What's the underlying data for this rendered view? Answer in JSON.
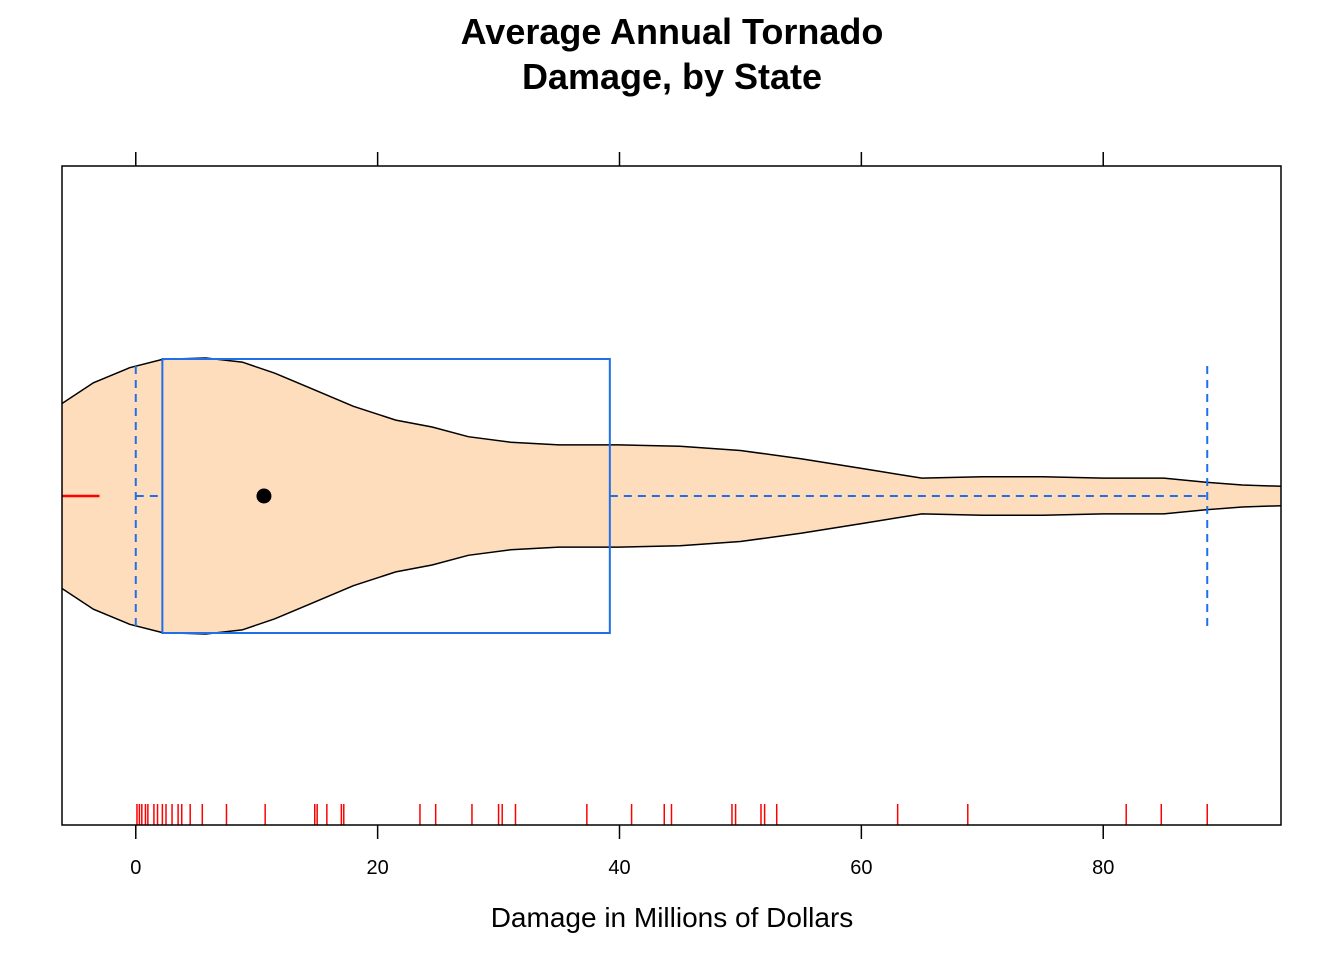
{
  "chart_data": {
    "type": "violin-box",
    "title_lines": [
      "Average Annual Tornado",
      "Damage, by State"
    ],
    "xlabel": "Damage in Millions of Dollars",
    "ylabel": "",
    "xlim": [
      -6.1,
      94.7
    ],
    "x_ticks": [
      0,
      20,
      40,
      60,
      80
    ],
    "box": {
      "whisker_low": 0,
      "q1": 2.2,
      "median": 10.6,
      "q3": 39.2,
      "whisker_high": 88.6,
      "outliers_low_marker": -3
    },
    "density": [
      {
        "x": -6.1,
        "h": 0.67
      },
      {
        "x": -3.5,
        "h": 0.82
      },
      {
        "x": -0.5,
        "h": 0.93
      },
      {
        "x": 2.2,
        "h": 0.99
      },
      {
        "x": 5.8,
        "h": 1.0
      },
      {
        "x": 8.8,
        "h": 0.97
      },
      {
        "x": 11.5,
        "h": 0.89
      },
      {
        "x": 14.5,
        "h": 0.78
      },
      {
        "x": 18,
        "h": 0.65
      },
      {
        "x": 21.5,
        "h": 0.55
      },
      {
        "x": 24.5,
        "h": 0.5
      },
      {
        "x": 27.5,
        "h": 0.43
      },
      {
        "x": 31,
        "h": 0.39
      },
      {
        "x": 35,
        "h": 0.37
      },
      {
        "x": 40,
        "h": 0.37
      },
      {
        "x": 45,
        "h": 0.36
      },
      {
        "x": 50,
        "h": 0.33
      },
      {
        "x": 55,
        "h": 0.27
      },
      {
        "x": 60,
        "h": 0.2
      },
      {
        "x": 65,
        "h": 0.13
      },
      {
        "x": 70,
        "h": 0.14
      },
      {
        "x": 75,
        "h": 0.14
      },
      {
        "x": 80,
        "h": 0.13
      },
      {
        "x": 85,
        "h": 0.13
      },
      {
        "x": 88.5,
        "h": 0.1
      },
      {
        "x": 91.5,
        "h": 0.08
      },
      {
        "x": 94.7,
        "h": 0.07
      }
    ],
    "rug": [
      0.1,
      0.3,
      0.5,
      0.8,
      1.0,
      1.5,
      1.8,
      2.2,
      2.5,
      3.0,
      3.5,
      3.8,
      4.5,
      5.5,
      7.5,
      10.7,
      14.8,
      15.0,
      15.8,
      17.0,
      17.2,
      23.5,
      24.8,
      27.8,
      30.0,
      30.3,
      31.4,
      37.3,
      41.0,
      43.7,
      44.3,
      49.3,
      49.6,
      51.7,
      52.0,
      53.0,
      63.0,
      68.8,
      81.9,
      84.8,
      88.6
    ],
    "colors": {
      "violin_fill": "#FDDDBB",
      "violin_stroke": "#000000",
      "box": "#1E6FE8",
      "rug": "#FF0000",
      "median_dot": "#000000",
      "axis": "#000000"
    }
  }
}
